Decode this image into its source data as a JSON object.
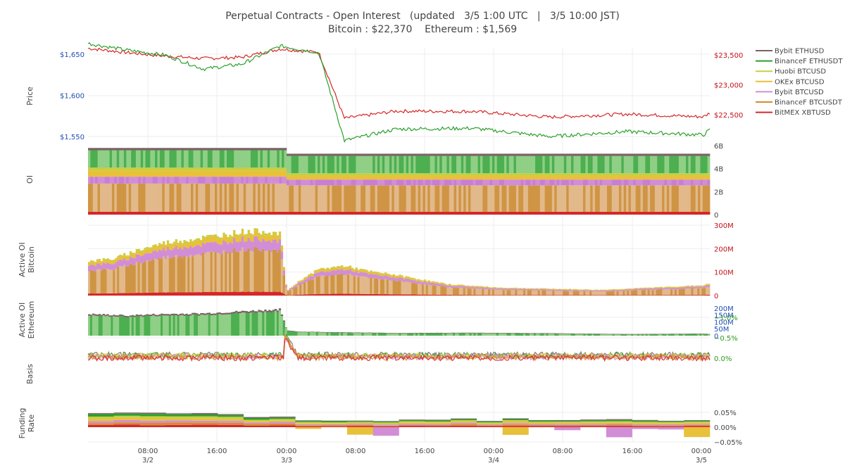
{
  "title": {
    "line1": "Perpetual Contracts - Open Interest   (updated   3/5 1:00 UTC   |   3/5 10:00 JST)",
    "line2": "Bitcoin : $22,370    Ethereum : $1,569"
  },
  "colors": {
    "bybit_ethusd": "#7a6264",
    "binancef_ethusdt": "#2ca02c",
    "huobi_btcusd": "#c5cf44",
    "okex_btcusd": "#e8c13a",
    "bybit_btcusd": "#d18ed6",
    "binancef_btcusdt": "#d98a2e",
    "bitmex_xbtusd": "#d62728",
    "eth_axis": "#1f4fb4",
    "btc_axis": "#c4101a",
    "basis_axis": "#2b9a1a"
  },
  "legend": [
    {
      "label": "Bybit ETHUSD",
      "color": "#7a6264"
    },
    {
      "label": "BinanceF ETHUSDT",
      "color": "#2ca02c"
    },
    {
      "label": "Huobi BTCUSD",
      "color": "#c5cf44"
    },
    {
      "label": "OKEx BTCUSD",
      "color": "#e8c13a"
    },
    {
      "label": "Bybit BTCUSD",
      "color": "#d18ed6"
    },
    {
      "label": "BinanceF BTCUSDT",
      "color": "#d98a2e"
    },
    {
      "label": "BitMEX XBTUSD",
      "color": "#d62728"
    }
  ],
  "chart_data": {
    "type": "area",
    "x_range": [
      "3/1 00:00",
      "3/5 01:00"
    ],
    "x_ticks": [
      {
        "time": "08:00",
        "date": "3/2"
      },
      {
        "time": "16:00",
        "date": ""
      },
      {
        "time": "00:00",
        "date": "3/3"
      },
      {
        "time": "08:00",
        "date": ""
      },
      {
        "time": "16:00",
        "date": ""
      },
      {
        "time": "00:00",
        "date": "3/4"
      },
      {
        "time": "08:00",
        "date": ""
      },
      {
        "time": "16:00",
        "date": ""
      },
      {
        "time": "00:00",
        "date": "3/5"
      }
    ],
    "panels": [
      {
        "id": "price",
        "ylabel": "Price",
        "left_axis_ticks": [
          "$1,550",
          "$1,600",
          "$1,650"
        ],
        "right_axis_ticks": [
          "$22,500",
          "$23,000",
          "$23,500"
        ],
        "series": [
          {
            "name": "BinanceF ETHUSDT",
            "axis": "left",
            "x_hours": [
              0,
              6,
              12,
              18,
              24,
              30,
              36,
              40,
              48,
              60,
              72,
              84,
              96,
              97
            ],
            "values": [
              1663,
              1655,
              1649,
              1632,
              1638,
              1660,
              1652,
              1545,
              1559,
              1560,
              1550,
              1556,
              1552,
              1558
            ]
          },
          {
            "name": "BitMEX XBTUSD",
            "axis": "right",
            "x_hours": [
              0,
              6,
              12,
              18,
              24,
              30,
              36,
              40,
              48,
              60,
              72,
              84,
              96,
              97
            ],
            "values": [
              23610,
              23540,
              23480,
              23440,
              23460,
              23600,
              23540,
              22440,
              22560,
              22555,
              22460,
              22510,
              22465,
              22530
            ]
          }
        ]
      },
      {
        "id": "oi",
        "ylabel": "OI",
        "right_axis_ticks": [
          "0",
          "2B",
          "4B",
          "6B"
        ],
        "y_range": [
          0,
          6
        ],
        "layers_bottom_to_top": [
          {
            "name": "BitMEX XBTUSD",
            "before": 0.25,
            "after": 0.25
          },
          {
            "name": "BinanceF BTCUSDT",
            "before": 2.45,
            "after": 2.3
          },
          {
            "name": "Bybit BTCUSD",
            "before": 0.6,
            "after": 0.5
          },
          {
            "name": "OKEx BTCUSD",
            "before": 0.55,
            "after": 0.35
          },
          {
            "name": "Huobi BTCUSD",
            "before": 0.25,
            "after": 0.2
          },
          {
            "name": "BinanceF ETHUSDT",
            "before": 1.5,
            "after": 1.5
          },
          {
            "name": "Bybit ETHUSD",
            "before": 0.2,
            "after": 0.2
          }
        ]
      },
      {
        "id": "active_btc",
        "ylabel": "Active OI Bitcoin",
        "right_axis_ticks": [
          "0",
          "100M",
          "200M",
          "300M"
        ],
        "y_range": [
          0,
          300
        ],
        "total_x_hours": [
          0,
          4,
          8,
          12,
          16,
          20,
          24,
          28,
          30,
          31,
          33,
          36,
          40,
          44,
          48,
          56,
          64,
          72,
          80,
          88,
          96,
          97
        ],
        "total_values": [
          150,
          160,
          200,
          230,
          245,
          260,
          278,
          280,
          265,
          20,
          65,
          115,
          130,
          105,
          90,
          50,
          35,
          30,
          25,
          35,
          45,
          52
        ]
      },
      {
        "id": "active_eth",
        "ylabel": "Active OI Ethereum",
        "right_axis_ticks": [
          "0",
          "50M",
          "100M",
          "150M",
          "200M"
        ],
        "y_range": [
          0,
          220
        ],
        "total_x_hours": [
          0,
          6,
          12,
          18,
          24,
          30,
          31,
          33,
          40,
          48,
          60,
          72,
          84,
          96,
          97
        ],
        "total_values": [
          160,
          150,
          160,
          165,
          180,
          195,
          40,
          30,
          25,
          20,
          22,
          18,
          12,
          15,
          12
        ]
      },
      {
        "id": "basis",
        "ylabel": "Basis",
        "right_axis_ticks": [
          "−1.0%",
          "−0.5%",
          "0.0%"
        ],
        "y_range": [
          -1.05,
          0.2
        ]
      },
      {
        "id": "funding",
        "ylabel": "Funding Rate",
        "right_axis_ticks": [
          "−0.05%",
          "0.00%",
          "0.05%"
        ],
        "y_range": [
          -0.06,
          0.07
        ]
      }
    ]
  }
}
